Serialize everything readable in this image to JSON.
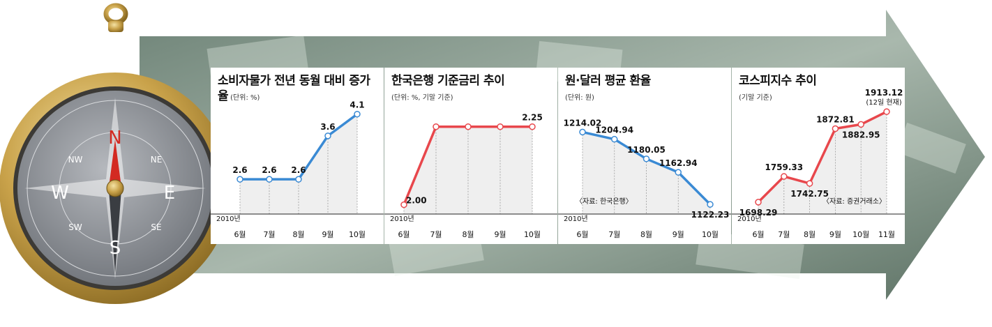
{
  "chart_data": [
    {
      "type": "line",
      "title": "소비자물가 전년 동월 대비 증가율",
      "unit_note": "(단위: %)",
      "subtitle": "",
      "source": "",
      "year_label": "2010년",
      "categories": [
        "6월",
        "7월",
        "8월",
        "9월",
        "10월"
      ],
      "values": [
        2.6,
        2.6,
        2.6,
        3.6,
        4.1
      ],
      "value_labels": [
        "2.6",
        "2.6",
        "2.6",
        "3.6",
        "4.1"
      ],
      "color": "#3a8ad4",
      "ylim": [
        1.8,
        4.4
      ]
    },
    {
      "type": "line",
      "title": "한국은행 기준금리 추이",
      "unit_note": "",
      "subtitle": "(단위: %, 기말 기준)",
      "source": "",
      "year_label": "2010년",
      "categories": [
        "6월",
        "7월",
        "8월",
        "9월",
        "10월"
      ],
      "values": [
        2.0,
        2.25,
        2.25,
        2.25,
        2.25
      ],
      "value_labels": [
        "2.00",
        "",
        "",
        "",
        "2.25"
      ],
      "color": "#e8474c",
      "ylim": [
        1.97,
        2.265
      ]
    },
    {
      "type": "line",
      "title": "원·달러 평균 환율",
      "unit_note": "",
      "subtitle": "(단위: 원)",
      "source": "〈자료: 한국은행〉",
      "year_label": "2010년",
      "categories": [
        "6월",
        "7월",
        "8월",
        "9월",
        "10월"
      ],
      "values": [
        1214.02,
        1204.94,
        1180.05,
        1162.94,
        1122.23
      ],
      "value_labels": [
        "1214.02",
        "1204.94",
        "1180.05",
        "1162.94",
        "1122.23"
      ],
      "color": "#3a8ad4",
      "ylim": [
        1110,
        1225
      ]
    },
    {
      "type": "line",
      "title": "코스피지수 추이",
      "unit_note": "",
      "subtitle": "(기말 기준)",
      "source": "〈자료: 증권거래소〉",
      "year_label": "2010년",
      "categories": [
        "6월",
        "7월",
        "8월",
        "9월",
        "10월",
        "11월"
      ],
      "values": [
        1698.29,
        1759.33,
        1742.75,
        1872.81,
        1882.95,
        1913.12
      ],
      "value_labels": [
        "1698.29",
        "1759.33",
        "1742.75",
        "1872.81",
        "1882.95",
        "1913.12"
      ],
      "last_note": "(12일 현재)",
      "color": "#e8474c",
      "ylim": [
        1670,
        1925
      ]
    }
  ],
  "compass": {
    "needle": "N",
    "labels": [
      "N",
      "NE",
      "E",
      "SE",
      "S",
      "SW",
      "W",
      "NW"
    ],
    "colors": {
      "gold": "#c9a24a",
      "face": "#8c8f94",
      "needle_red": "#d32a22",
      "needle_dark": "#3a3d42"
    }
  }
}
